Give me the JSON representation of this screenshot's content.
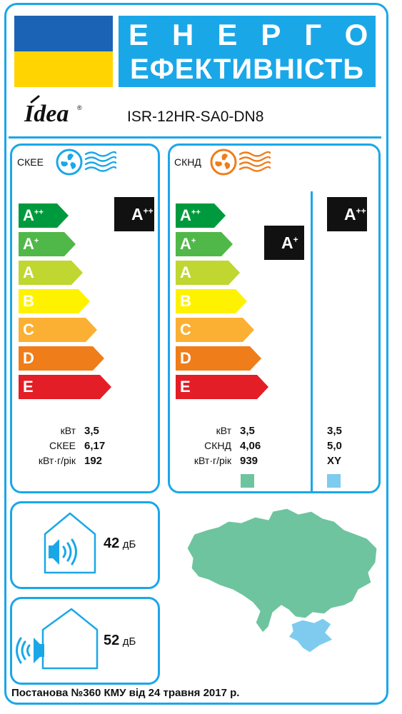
{
  "header": {
    "title_line1": "ЕНЕРГО",
    "title_line2": "ЕФЕКТИВНІСТЬ",
    "flag_colors": [
      "#1b64b5",
      "#ffd400"
    ],
    "title_bg_color": "#1aa7e8"
  },
  "brand": {
    "logo_text": "Idea",
    "logo_registered": "®",
    "model": "ISR-12HR-SA0-DN8"
  },
  "scale": [
    {
      "letter": "A",
      "sup": "++",
      "color": "#009a3e"
    },
    {
      "letter": "A",
      "sup": "+",
      "color": "#50b848"
    },
    {
      "letter": "A",
      "sup": "",
      "color": "#bfd730"
    },
    {
      "letter": "B",
      "sup": "",
      "color": "#fff200"
    },
    {
      "letter": "C",
      "sup": "",
      "color": "#fbb034"
    },
    {
      "letter": "D",
      "sup": "",
      "color": "#ef7d1a"
    },
    {
      "letter": "E",
      "sup": "",
      "color": "#e41e26"
    }
  ],
  "cooling": {
    "label": "СКЕЕ",
    "fan_color": "#1aa7e8",
    "rating": {
      "letter": "A",
      "sup": "++"
    },
    "rows": [
      {
        "label": "кВт",
        "value": "3,5"
      },
      {
        "label": "СКЕЕ",
        "value": "6,17"
      },
      {
        "label": "кВт·г/рік",
        "value": "192"
      }
    ]
  },
  "heating": {
    "label": "СКНД",
    "fan_color": "#ef7d1a",
    "rating_left": {
      "letter": "A",
      "sup": "+"
    },
    "rating_right": {
      "letter": "A",
      "sup": "++"
    },
    "rows": [
      {
        "label": "кВт",
        "value": "3,5",
        "value2": "3,5"
      },
      {
        "label": "СКНД",
        "value": "4,06",
        "value2": "5,0"
      },
      {
        "label": "кВт·г/рік",
        "value": "939",
        "value2": "XY"
      }
    ],
    "zone_colors": [
      "#6ec49e",
      "#7ecbef"
    ]
  },
  "noise": [
    {
      "value": "42",
      "unit": "дБ",
      "type": "indoor"
    },
    {
      "value": "52",
      "unit": "дБ",
      "type": "outdoor"
    }
  ],
  "map_colors": {
    "land": "#6ec49e",
    "crimea": "#7ecbef"
  },
  "footer": {
    "text": "Постанова №360 КМУ від 24 травня 2017 р."
  }
}
